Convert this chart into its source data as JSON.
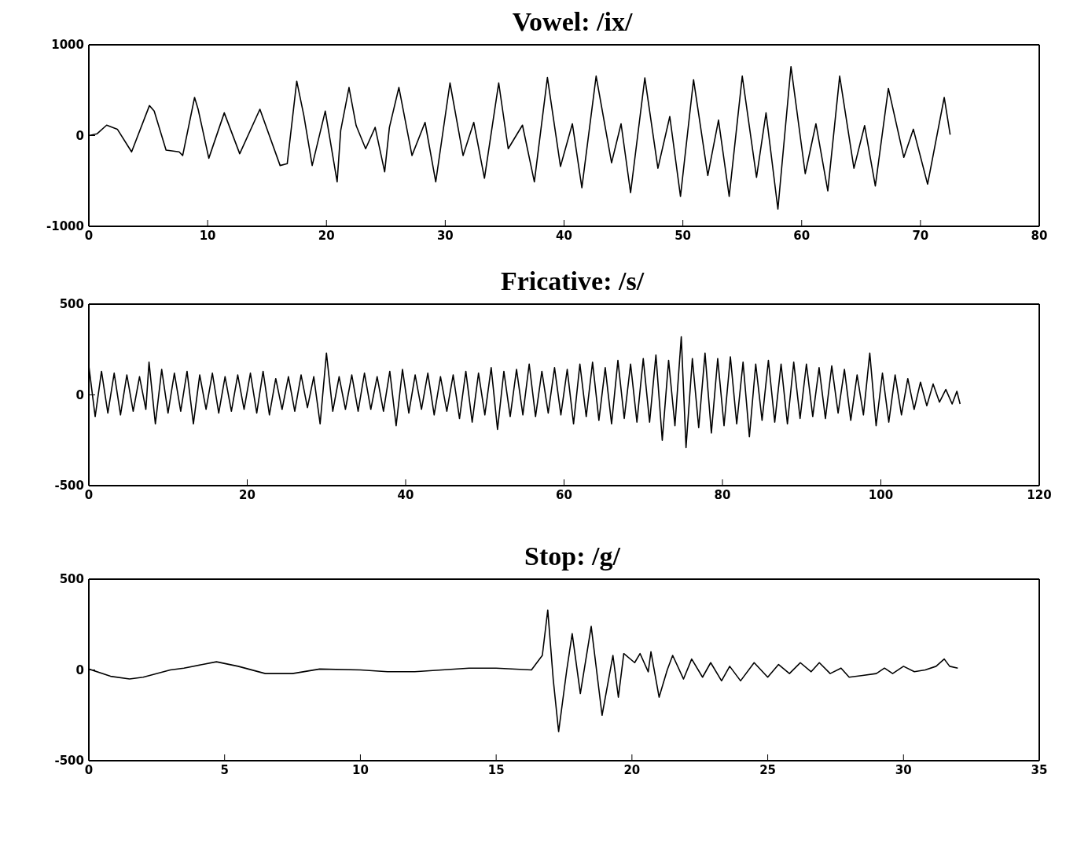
{
  "chart_data": [
    {
      "type": "line",
      "title": "Vowel: /ix/",
      "color": "#000000",
      "xlim": [
        0,
        80
      ],
      "xticks": [
        0,
        10,
        20,
        30,
        40,
        50,
        60,
        70,
        80
      ],
      "ylim": [
        -1000,
        1000
      ],
      "yticks": [
        -1000,
        0,
        1000
      ],
      "x": [
        0,
        0.7,
        1.5,
        2.4,
        3.6,
        5.1,
        5.5,
        6.5,
        7.6,
        7.9,
        8.9,
        9.2,
        10.1,
        11.4,
        12.7,
        14.4,
        16.1,
        16.7,
        17.5,
        18.1,
        18.8,
        19.9,
        20.9,
        21.2,
        21.9,
        22.5,
        23.3,
        24.1,
        24.9,
        25.3,
        26.1,
        27.2,
        28.3,
        29.2,
        30.4,
        31.5,
        32.4,
        33.3,
        34.5,
        35.3,
        36.5,
        37.5,
        38.6,
        39.7,
        40.7,
        41.5,
        42.7,
        44,
        44.8,
        45.6,
        46.8,
        47.9,
        48.9,
        49.8,
        50.9,
        52.1,
        53,
        53.9,
        55,
        56.2,
        57,
        58,
        59.1,
        60.3,
        61.2,
        62.2,
        63.2,
        64.4,
        65.3,
        66.2,
        67.3,
        68.6,
        69.4,
        70.6,
        72,
        72.5
      ],
      "values": [
        0,
        20,
        115,
        70,
        -180,
        330,
        270,
        -160,
        -180,
        -220,
        420,
        290,
        -250,
        250,
        -200,
        290,
        -330,
        -310,
        600,
        220,
        -330,
        270,
        -510,
        55,
        530,
        110,
        -145,
        90,
        -400,
        90,
        530,
        -220,
        145,
        -510,
        580,
        -220,
        145,
        -470,
        580,
        -145,
        115,
        -510,
        640,
        -340,
        130,
        -575,
        655,
        -300,
        130,
        -630,
        635,
        -360,
        210,
        -670,
        615,
        -440,
        170,
        -670,
        655,
        -460,
        250,
        -810,
        760,
        -420,
        130,
        -610,
        655,
        -360,
        110,
        -555,
        520,
        -240,
        70,
        -535,
        420,
        10
      ]
    },
    {
      "type": "line",
      "title": "Fricative: /s/",
      "color": "#000000",
      "xlim": [
        0,
        120
      ],
      "xticks": [
        0,
        20,
        40,
        60,
        80,
        100,
        120
      ],
      "ylim": [
        -500,
        500
      ],
      "yticks": [
        -500,
        0,
        500
      ],
      "x": [
        0,
        0.8,
        1.6,
        2.4,
        3.2,
        4,
        4.8,
        5.6,
        6.4,
        7.2,
        7.6,
        8.4,
        9.2,
        10,
        10.8,
        11.6,
        12.4,
        13.2,
        14,
        14.8,
        15.6,
        16.4,
        17.2,
        18,
        18.8,
        19.6,
        20.4,
        21.2,
        22,
        22.8,
        23.6,
        24.4,
        25.2,
        26,
        26.8,
        27.6,
        28.4,
        29.2,
        30,
        30.8,
        31.6,
        32.4,
        33.2,
        34,
        34.8,
        35.6,
        36.4,
        37.2,
        38,
        38.8,
        39.6,
        40.4,
        41.2,
        42,
        42.8,
        43.6,
        44.4,
        45.2,
        46,
        46.8,
        47.6,
        48.4,
        49.2,
        50,
        50.8,
        51.6,
        52.4,
        53.2,
        54,
        54.8,
        55.6,
        56.4,
        57.2,
        58,
        58.8,
        59.6,
        60.4,
        61.2,
        62,
        62.8,
        63.6,
        64.4,
        65.2,
        66,
        66.8,
        67.6,
        68.4,
        69.2,
        70,
        70.8,
        71.6,
        72.4,
        73.2,
        74,
        74.8,
        75.4,
        76.2,
        77,
        77.8,
        78.6,
        79.4,
        80.2,
        81,
        81.8,
        82.6,
        83.4,
        84.2,
        85,
        85.8,
        86.6,
        87.4,
        88.2,
        89,
        89.8,
        90.6,
        91.4,
        92.2,
        93,
        93.8,
        94.6,
        95.4,
        96.2,
        97,
        97.8,
        98.6,
        99.4,
        100.2,
        101,
        101.8,
        102.6,
        103.4,
        104.2,
        105,
        105.8,
        106.6,
        107.4,
        108.2,
        109,
        109.6,
        110
      ],
      "values": [
        160,
        -120,
        130,
        -100,
        120,
        -110,
        110,
        -90,
        100,
        -80,
        180,
        -160,
        140,
        -100,
        120,
        -90,
        130,
        -160,
        110,
        -80,
        120,
        -100,
        100,
        -90,
        110,
        -80,
        120,
        -100,
        130,
        -110,
        90,
        -80,
        100,
        -90,
        110,
        -70,
        100,
        -160,
        230,
        -90,
        100,
        -80,
        110,
        -90,
        120,
        -80,
        100,
        -90,
        130,
        -170,
        140,
        -100,
        110,
        -80,
        120,
        -110,
        100,
        -90,
        110,
        -130,
        130,
        -150,
        120,
        -110,
        150,
        -190,
        130,
        -120,
        140,
        -110,
        170,
        -120,
        130,
        -100,
        150,
        -110,
        140,
        -160,
        170,
        -120,
        180,
        -140,
        150,
        -160,
        190,
        -130,
        170,
        -150,
        200,
        -150,
        220,
        -250,
        190,
        -170,
        320,
        -290,
        200,
        -180,
        230,
        -210,
        200,
        -170,
        210,
        -160,
        180,
        -230,
        170,
        -140,
        190,
        -150,
        170,
        -160,
        180,
        -130,
        170,
        -120,
        150,
        -130,
        160,
        -100,
        140,
        -140,
        110,
        -110,
        230,
        -170,
        120,
        -150,
        110,
        -110,
        90,
        -80,
        70,
        -60,
        60,
        -40,
        30,
        -50,
        20,
        -50
      ]
    },
    {
      "type": "line",
      "title": "Stop: /g/",
      "color": "#000000",
      "xlim": [
        0,
        35
      ],
      "xticks": [
        0,
        5,
        10,
        15,
        20,
        25,
        30,
        35
      ],
      "ylim": [
        -500,
        500
      ],
      "yticks": [
        -500,
        0,
        500
      ],
      "x": [
        0,
        0.8,
        1.5,
        2,
        3,
        3.5,
        4.7,
        5.5,
        6.5,
        7.5,
        8.5,
        10,
        11,
        12,
        13,
        14,
        15,
        16.3,
        16.7,
        16.9,
        17.1,
        17.3,
        17.6,
        17.8,
        18.1,
        18.5,
        18.9,
        19.3,
        19.5,
        19.7,
        20.1,
        20.3,
        20.6,
        20.7,
        21,
        21.3,
        21.5,
        21.9,
        22.2,
        22.6,
        22.9,
        23.3,
        23.6,
        24,
        24.5,
        25,
        25.4,
        25.8,
        26.2,
        26.6,
        26.9,
        27.3,
        27.7,
        28,
        28.5,
        29,
        29.3,
        29.6,
        30,
        30.4,
        30.8,
        31.2,
        31.5,
        31.7,
        32
      ],
      "values": [
        5,
        -35,
        -50,
        -40,
        0,
        10,
        45,
        20,
        -20,
        -20,
        5,
        0,
        -10,
        -10,
        0,
        10,
        10,
        0,
        80,
        330,
        -50,
        -340,
        0,
        200,
        -130,
        240,
        -250,
        80,
        -150,
        90,
        40,
        90,
        -10,
        100,
        -150,
        0,
        80,
        -50,
        60,
        -40,
        40,
        -60,
        20,
        -60,
        40,
        -40,
        30,
        -20,
        40,
        -10,
        40,
        -20,
        10,
        -40,
        -30,
        -20,
        10,
        -20,
        20,
        -10,
        0,
        20,
        60,
        20,
        10
      ]
    }
  ]
}
